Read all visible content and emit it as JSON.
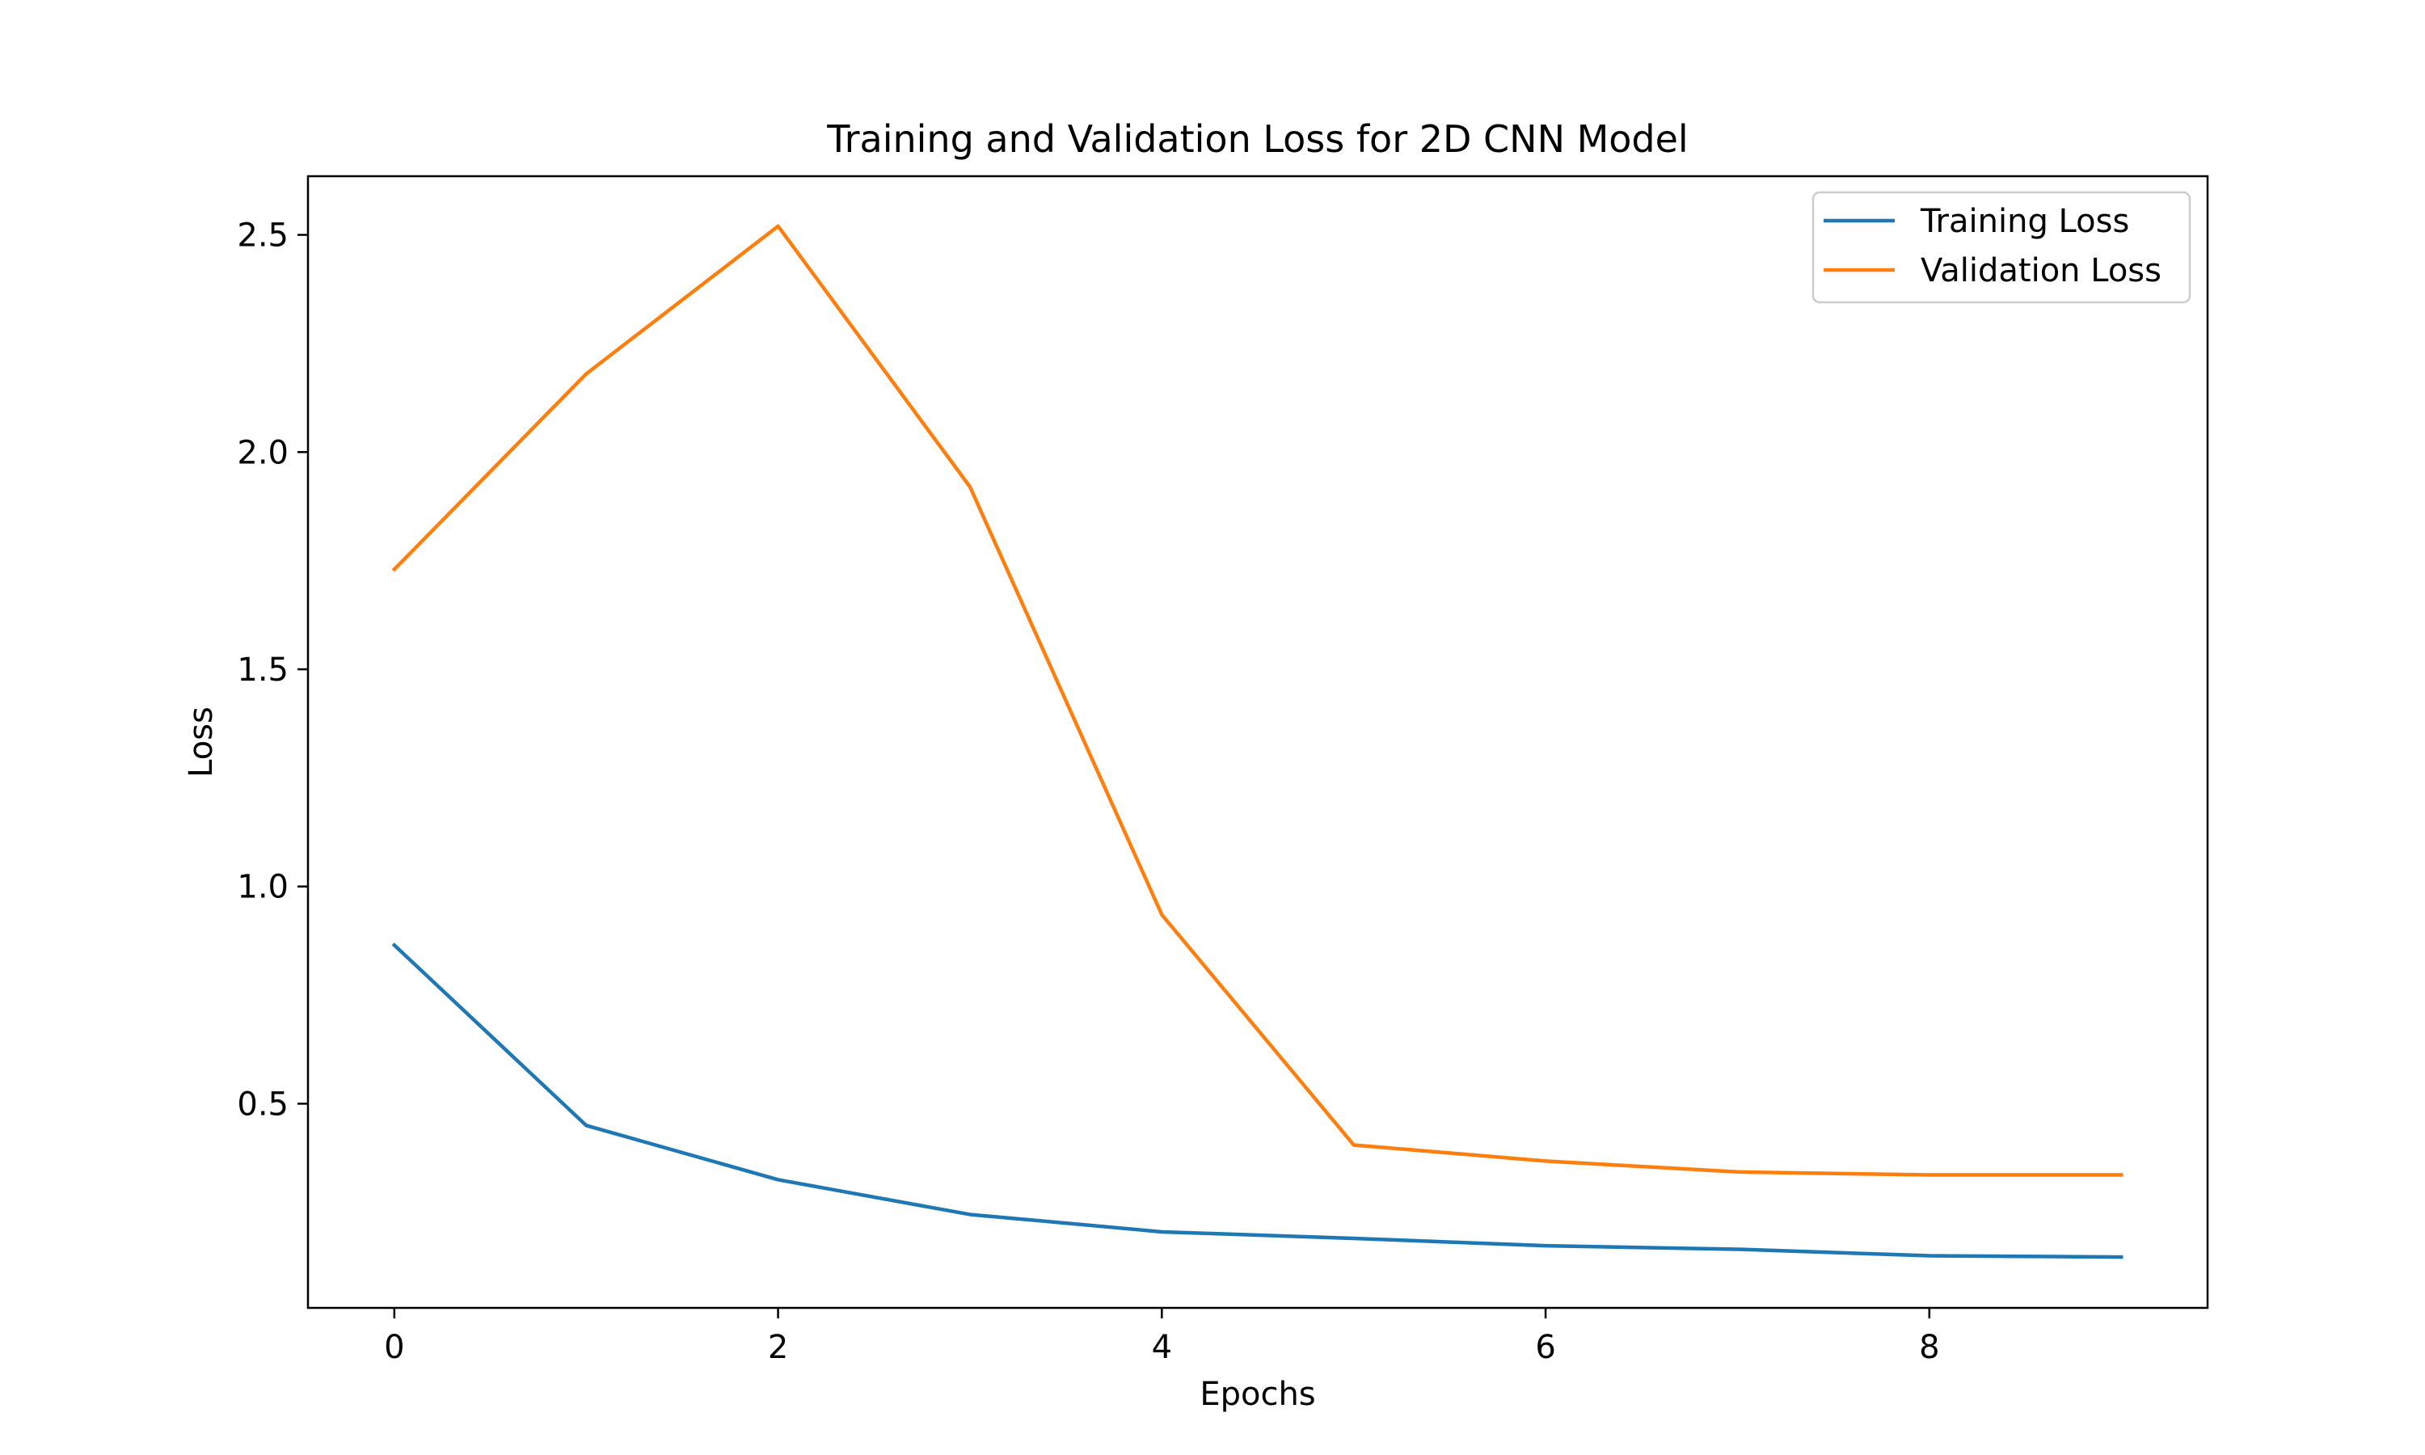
{
  "chart_data": {
    "type": "line",
    "title": "Training and Validation Loss for 2D CNN Model",
    "xlabel": "Epochs",
    "ylabel": "Loss",
    "xlim": [
      -0.45,
      9.45
    ],
    "ylim": [
      0.03,
      2.635
    ],
    "x_ticks": [
      0,
      2,
      4,
      6,
      8
    ],
    "x_tick_labels": [
      "0",
      "2",
      "4",
      "6",
      "8"
    ],
    "y_ticks": [
      0.5,
      1.0,
      1.5,
      2.0,
      2.5
    ],
    "y_tick_labels": [
      "0.5",
      "1.0",
      "1.5",
      "2.0",
      "2.5"
    ],
    "grid": false,
    "legend_position": "top-right",
    "x": [
      0,
      1,
      2,
      3,
      4,
      5,
      6,
      7,
      8,
      9
    ],
    "series": [
      {
        "name": "Training Loss",
        "color": "#1f77b4",
        "values": [
          0.865,
          0.45,
          0.325,
          0.245,
          0.205,
          0.19,
          0.173,
          0.165,
          0.15,
          0.147
        ]
      },
      {
        "name": "Validation Loss",
        "color": "#ff7f0e",
        "values": [
          1.73,
          2.18,
          2.52,
          1.92,
          0.935,
          0.405,
          0.368,
          0.343,
          0.336,
          0.336
        ]
      }
    ]
  }
}
